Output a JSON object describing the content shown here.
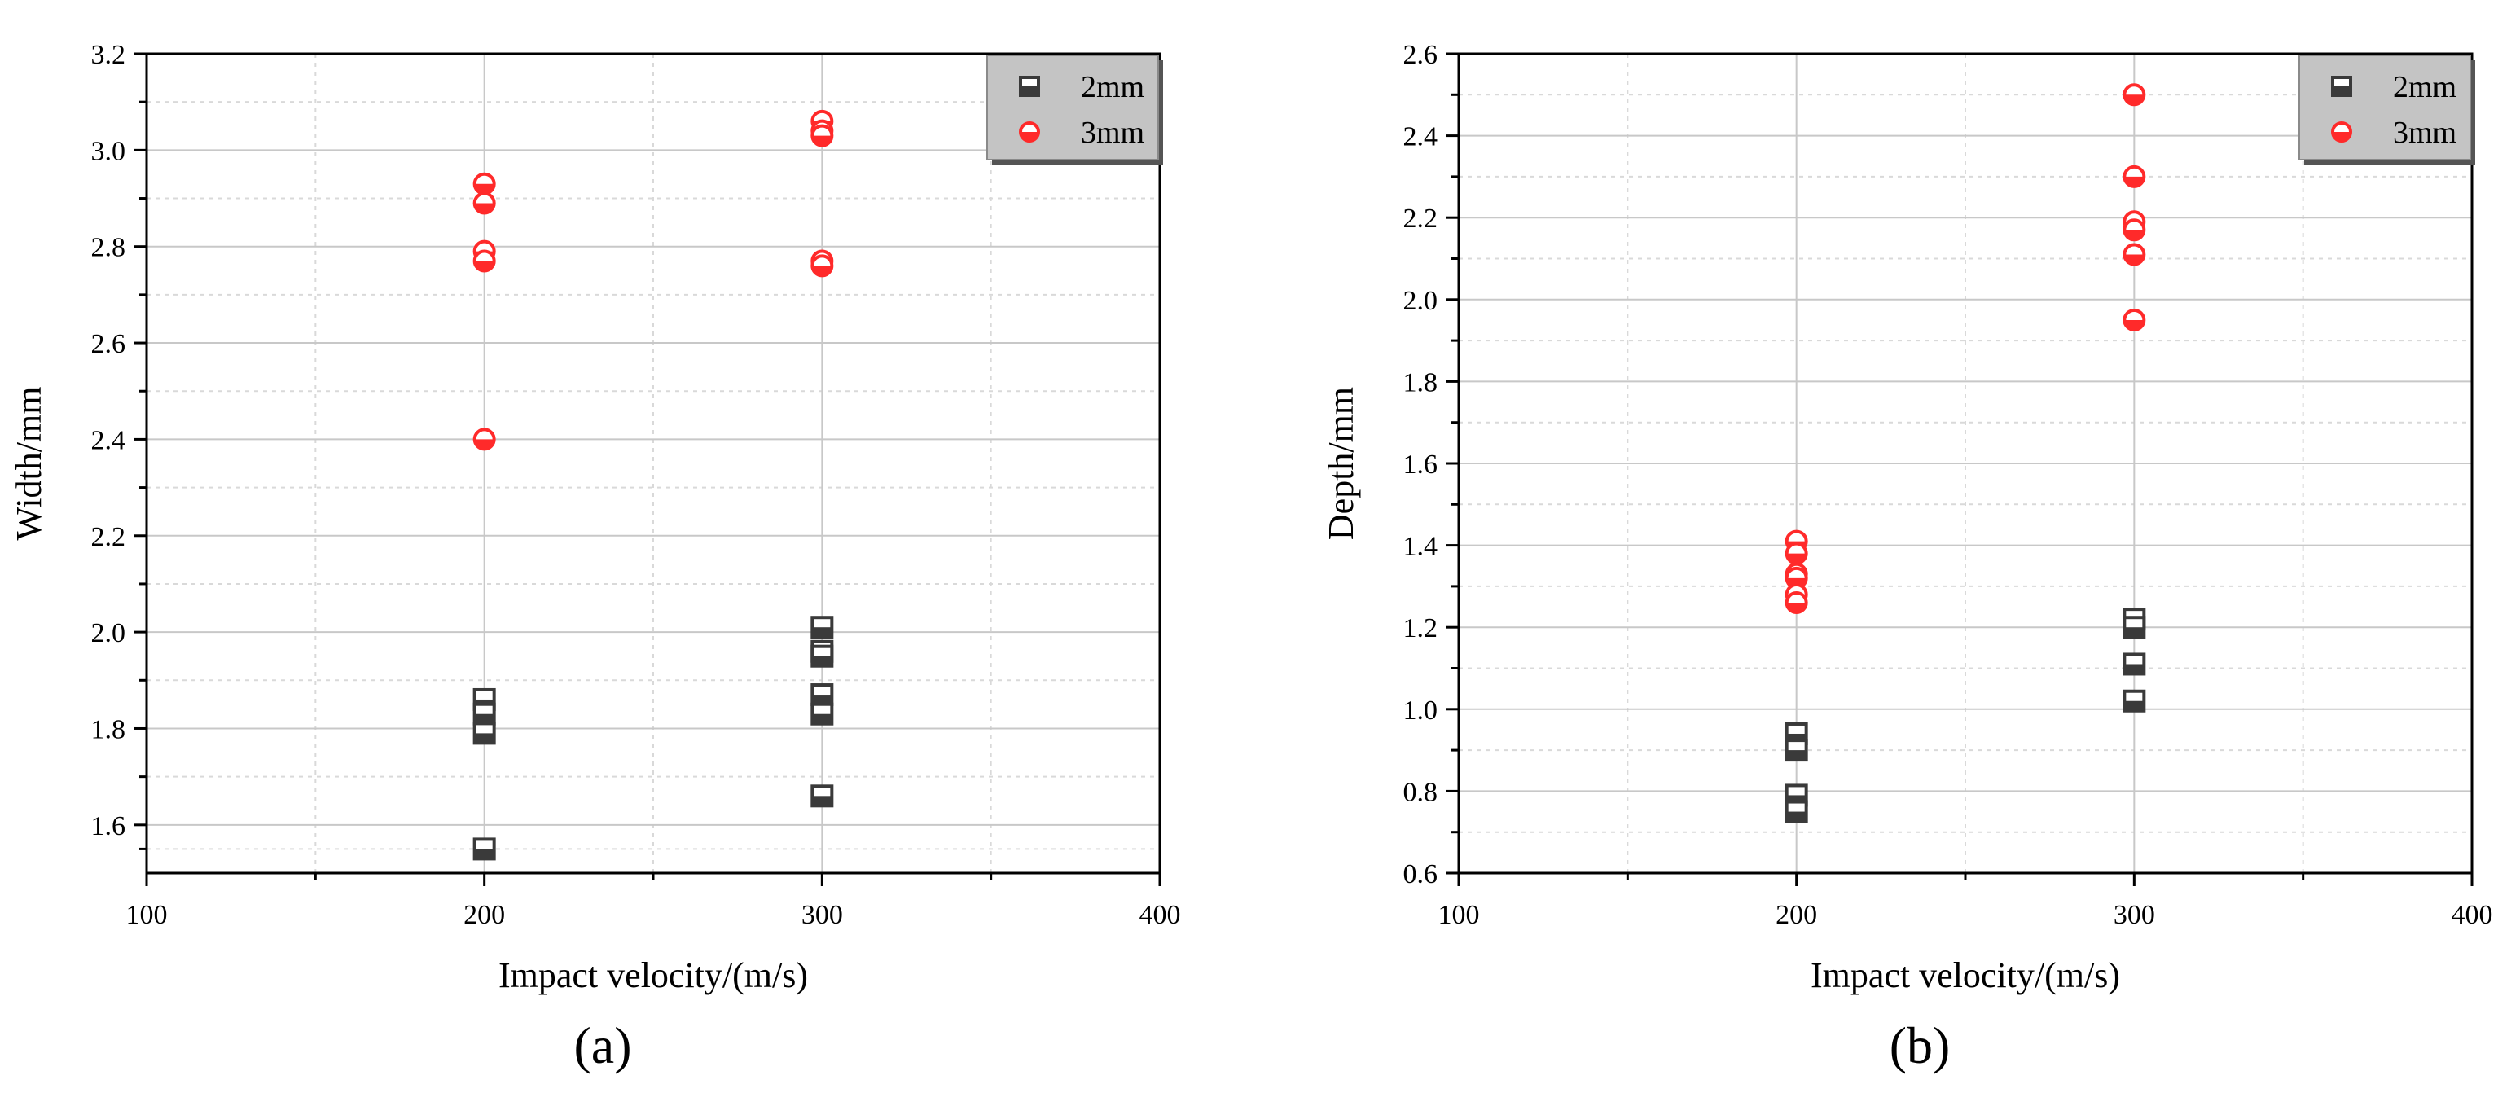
{
  "figure": {
    "panels": [
      "(a)",
      "(b)"
    ]
  },
  "chart_data": [
    {
      "type": "scatter",
      "panel_label": "(a)",
      "xlabel": "Impact velocity/(m/s)",
      "ylabel": "Width/mm",
      "xlim": [
        100,
        400
      ],
      "ylim": [
        1.5,
        3.2
      ],
      "xticks": [
        100,
        200,
        300,
        400
      ],
      "yticks": [
        1.6,
        1.8,
        2.0,
        2.2,
        2.4,
        2.6,
        2.8,
        3.0,
        3.2
      ],
      "grid": true,
      "legend_position": "top-right",
      "series": [
        {
          "name": "2mm",
          "marker": "square",
          "color": "#3a3a3a",
          "points": [
            [
              200,
              1.86
            ],
            [
              200,
              1.83
            ],
            [
              200,
              1.79
            ],
            [
              200,
              1.55
            ],
            [
              300,
              2.01
            ],
            [
              300,
              1.96
            ],
            [
              300,
              1.95
            ],
            [
              300,
              1.87
            ],
            [
              300,
              1.83
            ],
            [
              300,
              1.66
            ]
          ]
        },
        {
          "name": "3mm",
          "marker": "circle",
          "color": "#ff2a2a",
          "points": [
            [
              200,
              2.93
            ],
            [
              200,
              2.89
            ],
            [
              200,
              2.79
            ],
            [
              200,
              2.77
            ],
            [
              200,
              2.4
            ],
            [
              300,
              3.06
            ],
            [
              300,
              3.04
            ],
            [
              300,
              3.03
            ],
            [
              300,
              2.77
            ],
            [
              300,
              2.76
            ]
          ]
        }
      ]
    },
    {
      "type": "scatter",
      "panel_label": "(b)",
      "xlabel": "Impact velocity/(m/s)",
      "ylabel": "Depth/mm",
      "xlim": [
        100,
        400
      ],
      "ylim": [
        0.6,
        2.6
      ],
      "xticks": [
        100,
        200,
        300,
        400
      ],
      "yticks": [
        0.6,
        0.8,
        1.0,
        1.2,
        1.4,
        1.6,
        1.8,
        2.0,
        2.2,
        2.4,
        2.6
      ],
      "grid": true,
      "legend_position": "top-right",
      "series": [
        {
          "name": "2mm",
          "marker": "square",
          "color": "#3a3a3a",
          "points": [
            [
              200,
              0.94
            ],
            [
              200,
              0.9
            ],
            [
              200,
              0.79
            ],
            [
              200,
              0.75
            ],
            [
              300,
              1.22
            ],
            [
              300,
              1.2
            ],
            [
              300,
              1.11
            ],
            [
              300,
              1.02
            ]
          ]
        },
        {
          "name": "3mm",
          "marker": "circle",
          "color": "#ff2a2a",
          "points": [
            [
              200,
              1.41
            ],
            [
              200,
              1.38
            ],
            [
              200,
              1.33
            ],
            [
              200,
              1.32
            ],
            [
              200,
              1.28
            ],
            [
              200,
              1.26
            ],
            [
              300,
              2.5
            ],
            [
              300,
              2.3
            ],
            [
              300,
              2.19
            ],
            [
              300,
              2.17
            ],
            [
              300,
              2.11
            ],
            [
              300,
              1.95
            ]
          ]
        }
      ]
    }
  ]
}
